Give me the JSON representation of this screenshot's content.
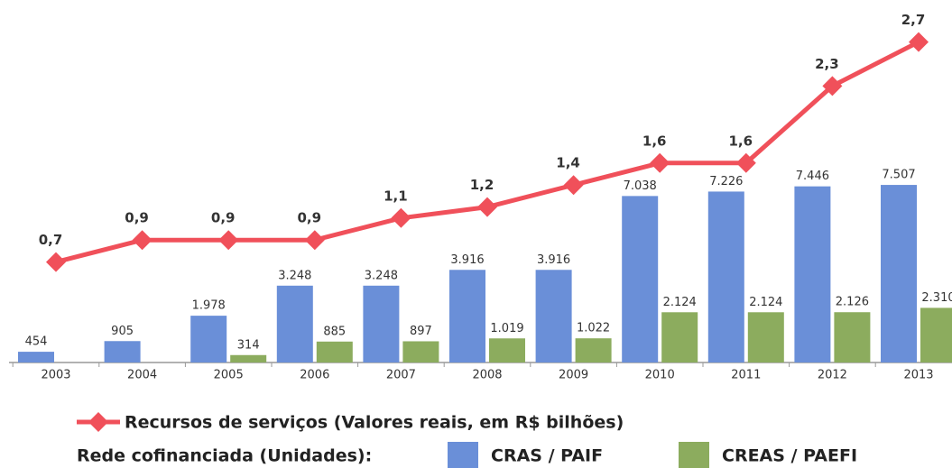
{
  "chart_data": {
    "type": "bar-line",
    "categories": [
      "2003",
      "2004",
      "2005",
      "2006",
      "2007",
      "2008",
      "2009",
      "2010",
      "2011",
      "2012",
      "2013"
    ],
    "series": [
      {
        "name": "CRAS / PAIF",
        "type": "bar",
        "color": "#6a8fd8",
        "values": [
          454,
          905,
          1978,
          3248,
          3248,
          3916,
          3916,
          7038,
          7226,
          7446,
          7507
        ],
        "value_labels": [
          "454",
          "905",
          "1.978",
          "3.248",
          "3.248",
          "3.916",
          "3.916",
          "7.038",
          "7.226",
          "7.446",
          "7.507"
        ]
      },
      {
        "name": "CREAS / PAEFI",
        "type": "bar",
        "color": "#8cac5e",
        "values": [
          null,
          null,
          314,
          885,
          897,
          1019,
          1022,
          2124,
          2124,
          2126,
          2310
        ],
        "value_labels": [
          null,
          null,
          "314",
          "885",
          "897",
          "1.019",
          "1.022",
          "2.124",
          "2.124",
          "2.126",
          "2.310"
        ]
      },
      {
        "name": "Recursos de serviços (Valores reais, em R$ bilhões)",
        "type": "line",
        "axis": "y2",
        "color": "#f0505a",
        "values": [
          0.7,
          0.9,
          0.9,
          0.9,
          1.1,
          1.2,
          1.4,
          1.6,
          1.6,
          2.3,
          2.7
        ],
        "value_labels": [
          "0,7",
          "0,9",
          "0,9",
          "0,9",
          "1,1",
          "1,2",
          "1,4",
          "1,6",
          "1,6",
          "2,3",
          "2,7"
        ]
      }
    ],
    "legend_group_label": "Rede cofinanciada (Unidades):",
    "ylim": [
      0,
      15000
    ],
    "y2lim": [
      0,
      3
    ]
  }
}
